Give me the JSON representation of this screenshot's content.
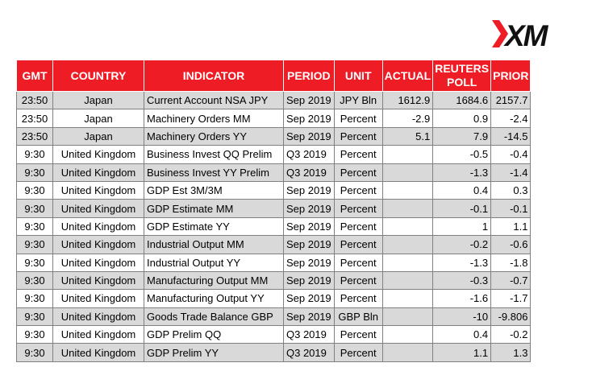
{
  "brand": {
    "logo_text": "XM",
    "accent": "#ee1c24"
  },
  "table": {
    "headers": [
      "GMT",
      "COUNTRY",
      "INDICATOR",
      "PERIOD",
      "UNIT",
      "ACTUAL",
      "REUTERS POLL",
      "PRIOR"
    ],
    "rows": [
      [
        "23:50",
        "Japan",
        "Current Account NSA JPY",
        "Sep 2019",
        "JPY Bln",
        "1612.9",
        "1684.6",
        "2157.7"
      ],
      [
        "23:50",
        "Japan",
        "Machinery Orders MM",
        "Sep 2019",
        "Percent",
        "-2.9",
        "0.9",
        "-2.4"
      ],
      [
        "23:50",
        "Japan",
        "Machinery Orders YY",
        "Sep 2019",
        "Percent",
        "5.1",
        "7.9",
        "-14.5"
      ],
      [
        "9:30",
        "United Kingdom",
        "Business Invest QQ Prelim",
        "Q3 2019",
        "Percent",
        "",
        "-0.5",
        "-0.4"
      ],
      [
        "9:30",
        "United Kingdom",
        "Business Invest YY Prelim",
        "Q3 2019",
        "Percent",
        "",
        "-1.3",
        "-1.4"
      ],
      [
        "9:30",
        "United Kingdom",
        "GDP Est 3M/3M",
        "Sep 2019",
        "Percent",
        "",
        "0.4",
        "0.3"
      ],
      [
        "9:30",
        "United Kingdom",
        "GDP Estimate MM",
        "Sep 2019",
        "Percent",
        "",
        "-0.1",
        "-0.1"
      ],
      [
        "9:30",
        "United Kingdom",
        "GDP Estimate YY",
        "Sep 2019",
        "Percent",
        "",
        "1",
        "1.1"
      ],
      [
        "9:30",
        "United Kingdom",
        "Industrial Output MM",
        "Sep 2019",
        "Percent",
        "",
        "-0.2",
        "-0.6"
      ],
      [
        "9:30",
        "United Kingdom",
        "Industrial Output YY",
        "Sep 2019",
        "Percent",
        "",
        "-1.3",
        "-1.8"
      ],
      [
        "9:30",
        "United Kingdom",
        "Manufacturing Output MM",
        "Sep 2019",
        "Percent",
        "",
        "-0.3",
        "-0.7"
      ],
      [
        "9:30",
        "United Kingdom",
        "Manufacturing Output YY",
        "Sep 2019",
        "Percent",
        "",
        "-1.6",
        "-1.7"
      ],
      [
        "9:30",
        "United Kingdom",
        "Goods Trade Balance GBP",
        "Sep 2019",
        "GBP Bln",
        "",
        "-10",
        "-9.806"
      ],
      [
        "9:30",
        "United Kingdom",
        "GDP Prelim QQ",
        "Q3 2019",
        "Percent",
        "",
        "0.4",
        "-0.2"
      ],
      [
        "9:30",
        "United Kingdom",
        "GDP Prelim YY",
        "Q3 2019",
        "Percent",
        "",
        "1.1",
        "1.3"
      ]
    ]
  }
}
